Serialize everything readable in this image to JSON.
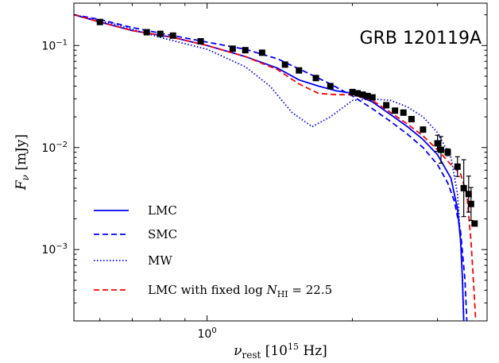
{
  "chart_data": {
    "type": "line",
    "annotation": "GRB 120119A",
    "xlabel_main": "ν",
    "xlabel_sub": "rest",
    "xlabel_rest": "[10",
    "xlabel_exp": "15",
    "xlabel_unit": "Hz]",
    "ylabel_main": "F",
    "ylabel_sub": "ν",
    "ylabel_unit": "[mJy]",
    "xscale": "log",
    "yscale": "log",
    "xlim": [
      0.53,
      3.8
    ],
    "ylim": [
      0.0002,
      0.26
    ],
    "x_ticks": [
      {
        "value": 1.0,
        "base": "10",
        "exp": "0"
      }
    ],
    "y_ticks": [
      {
        "value": 0.1,
        "base": "10",
        "exp": "−1"
      },
      {
        "value": 0.01,
        "base": "10",
        "exp": "−2"
      },
      {
        "value": 0.001,
        "base": "10",
        "exp": "−3"
      }
    ],
    "series": [
      {
        "name": "LMC",
        "color": "#0000ff",
        "style": "solid",
        "x": [
          0.53,
          0.6,
          0.7,
          0.85,
          1.0,
          1.2,
          1.4,
          1.55,
          1.7,
          1.85,
          2.0,
          2.2,
          2.4,
          2.6,
          2.8,
          3.0,
          3.2,
          3.3,
          3.35,
          3.38,
          3.4
        ],
        "y": [
          0.2,
          0.17,
          0.14,
          0.12,
          0.1,
          0.078,
          0.06,
          0.046,
          0.04,
          0.036,
          0.034,
          0.028,
          0.021,
          0.016,
          0.012,
          0.0085,
          0.005,
          0.0025,
          0.0012,
          0.0005,
          0.0002
        ]
      },
      {
        "name": "SMC",
        "color": "#0000ff",
        "style": "dashed",
        "x": [
          0.53,
          0.6,
          0.7,
          0.85,
          1.0,
          1.2,
          1.4,
          1.6,
          1.8,
          2.0,
          2.2,
          2.4,
          2.6,
          2.8,
          3.0,
          3.15,
          3.25,
          3.35,
          3.42,
          3.45
        ],
        "y": [
          0.2,
          0.18,
          0.15,
          0.125,
          0.108,
          0.092,
          0.074,
          0.055,
          0.042,
          0.032,
          0.024,
          0.018,
          0.0135,
          0.01,
          0.0068,
          0.0045,
          0.003,
          0.0015,
          0.0005,
          0.0002
        ]
      },
      {
        "name": "MW",
        "color": "#0000ff",
        "style": "dotted",
        "x": [
          0.53,
          0.65,
          0.8,
          1.0,
          1.2,
          1.35,
          1.5,
          1.65,
          1.8,
          2.0,
          2.2,
          2.4,
          2.6,
          2.8,
          3.0,
          3.2,
          3.3,
          3.36,
          3.4
        ],
        "y": [
          0.2,
          0.16,
          0.12,
          0.092,
          0.062,
          0.04,
          0.022,
          0.016,
          0.02,
          0.029,
          0.03,
          0.029,
          0.025,
          0.02,
          0.014,
          0.008,
          0.0035,
          0.001,
          0.0002
        ]
      },
      {
        "name": "LMC with fixed log N_HI = 22.5",
        "color": "#ff0000",
        "style": "dashed",
        "x": [
          0.53,
          0.6,
          0.7,
          0.85,
          1.0,
          1.2,
          1.4,
          1.55,
          1.7,
          1.85,
          2.0,
          2.2,
          2.4,
          2.6,
          2.8,
          3.0,
          3.2,
          3.35,
          3.45,
          3.52,
          3.57,
          3.6
        ],
        "y": [
          0.2,
          0.17,
          0.14,
          0.12,
          0.1,
          0.078,
          0.058,
          0.042,
          0.034,
          0.033,
          0.033,
          0.029,
          0.022,
          0.017,
          0.013,
          0.0095,
          0.0068,
          0.0055,
          0.0035,
          0.0012,
          0.0004,
          0.0002
        ]
      }
    ],
    "points": {
      "name": "Observed",
      "x": [
        0.6,
        0.75,
        0.8,
        0.85,
        0.97,
        1.13,
        1.2,
        1.3,
        1.45,
        1.55,
        1.68,
        1.8,
        2.0,
        2.05,
        2.1,
        2.15,
        2.2,
        2.35,
        2.45,
        2.55,
        2.65,
        2.8,
        3.0,
        3.05,
        3.15,
        3.3,
        3.4,
        3.48,
        3.52,
        3.58
      ],
      "y": [
        0.17,
        0.135,
        0.13,
        0.125,
        0.11,
        0.093,
        0.09,
        0.085,
        0.065,
        0.057,
        0.048,
        0.04,
        0.035,
        0.034,
        0.033,
        0.032,
        0.031,
        0.026,
        0.023,
        0.022,
        0.019,
        0.015,
        0.011,
        0.0095,
        0.009,
        0.0065,
        0.004,
        0.0035,
        0.0028,
        0.0018
      ],
      "yerr_factor": [
        1.03,
        1.03,
        1.03,
        1.03,
        1.03,
        1.03,
        1.03,
        1.03,
        1.03,
        1.03,
        1.03,
        1.03,
        1.03,
        1.03,
        1.03,
        1.03,
        1.03,
        1.03,
        1.03,
        1.03,
        1.03,
        1.03,
        1.2,
        1.35,
        1.08,
        1.25,
        1.9,
        1.5,
        1.45,
        1.03
      ]
    },
    "legend_position": "lower-left"
  }
}
